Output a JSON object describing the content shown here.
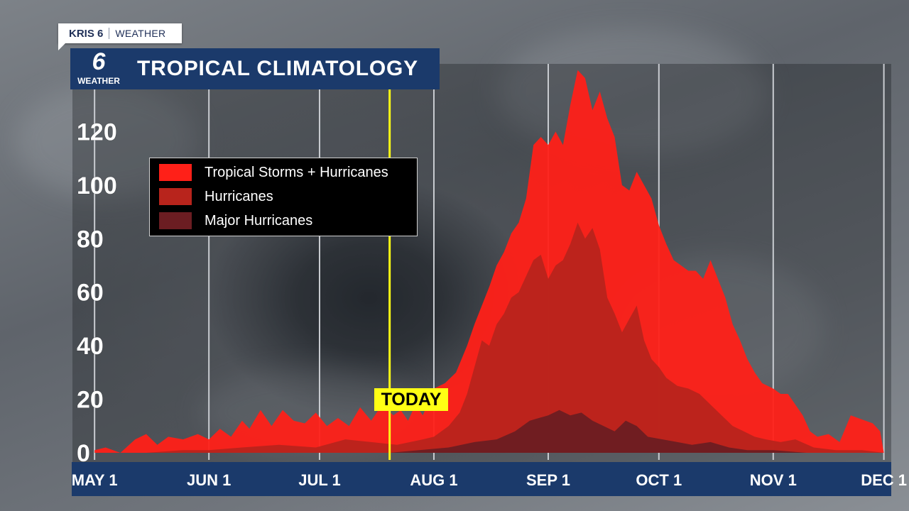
{
  "brand": {
    "station": "KRIS 6",
    "section": "WEATHER"
  },
  "logo": {
    "number": "6",
    "label": "WEATHER"
  },
  "title": "TROPICAL CLIMATOLOGY",
  "today_label": "TODAY",
  "colors": {
    "ts_hurricanes": "#ff2018",
    "hurricanes": "#b8241c",
    "major_hurricanes": "#6b1d22",
    "title_bar": "#1b3a6b",
    "today": "#ffff14"
  },
  "chart_data": {
    "type": "area",
    "title": "TROPICAL CLIMATOLOGY",
    "xlabel": "",
    "ylabel": "",
    "ylim": [
      0,
      140
    ],
    "yticks": [
      0,
      20,
      40,
      60,
      80,
      100,
      120,
      140
    ],
    "x_range": [
      "2024-04-25",
      "2024-12-03"
    ],
    "xticks": [
      {
        "date": "2024-05-01",
        "label": "MAY 1"
      },
      {
        "date": "2024-06-01",
        "label": "JUN 1"
      },
      {
        "date": "2024-07-01",
        "label": "JUL 1"
      },
      {
        "date": "2024-08-01",
        "label": "AUG 1"
      },
      {
        "date": "2024-09-01",
        "label": "SEP 1"
      },
      {
        "date": "2024-10-01",
        "label": "OCT 1"
      },
      {
        "date": "2024-11-01",
        "label": "NOV 1"
      },
      {
        "date": "2024-12-01",
        "label": "DEC 1"
      }
    ],
    "today": "2024-07-20",
    "grid": true,
    "legend_position": "upper-left",
    "series": [
      {
        "name": "Tropical Storms + Hurricanes",
        "color": "#ff2018",
        "points": [
          [
            "2024-05-01",
            1
          ],
          [
            "2024-05-04",
            2
          ],
          [
            "2024-05-08",
            0
          ],
          [
            "2024-05-12",
            5
          ],
          [
            "2024-05-15",
            7
          ],
          [
            "2024-05-18",
            3
          ],
          [
            "2024-05-21",
            6
          ],
          [
            "2024-05-25",
            5
          ],
          [
            "2024-05-29",
            7
          ],
          [
            "2024-06-01",
            5
          ],
          [
            "2024-06-04",
            9
          ],
          [
            "2024-06-07",
            6
          ],
          [
            "2024-06-10",
            12
          ],
          [
            "2024-06-12",
            9
          ],
          [
            "2024-06-15",
            16
          ],
          [
            "2024-06-18",
            10
          ],
          [
            "2024-06-21",
            16
          ],
          [
            "2024-06-24",
            12
          ],
          [
            "2024-06-27",
            11
          ],
          [
            "2024-06-30",
            15
          ],
          [
            "2024-07-03",
            10
          ],
          [
            "2024-07-06",
            13
          ],
          [
            "2024-07-09",
            10
          ],
          [
            "2024-07-12",
            17
          ],
          [
            "2024-07-15",
            12
          ],
          [
            "2024-07-18",
            18
          ],
          [
            "2024-07-21",
            14
          ],
          [
            "2024-07-23",
            16
          ],
          [
            "2024-07-25",
            12
          ],
          [
            "2024-07-27",
            18
          ],
          [
            "2024-07-29",
            14
          ],
          [
            "2024-08-01",
            24
          ],
          [
            "2024-08-04",
            26
          ],
          [
            "2024-08-07",
            30
          ],
          [
            "2024-08-10",
            40
          ],
          [
            "2024-08-12",
            48
          ],
          [
            "2024-08-14",
            55
          ],
          [
            "2024-08-16",
            62
          ],
          [
            "2024-08-18",
            70
          ],
          [
            "2024-08-20",
            75
          ],
          [
            "2024-08-22",
            82
          ],
          [
            "2024-08-24",
            86
          ],
          [
            "2024-08-26",
            95
          ],
          [
            "2024-08-28",
            115
          ],
          [
            "2024-08-30",
            118
          ],
          [
            "2024-09-01",
            115
          ],
          [
            "2024-09-03",
            120
          ],
          [
            "2024-09-05",
            115
          ],
          [
            "2024-09-07",
            130
          ],
          [
            "2024-09-09",
            143
          ],
          [
            "2024-09-11",
            140
          ],
          [
            "2024-09-13",
            128
          ],
          [
            "2024-09-15",
            135
          ],
          [
            "2024-09-17",
            125
          ],
          [
            "2024-09-19",
            118
          ],
          [
            "2024-09-21",
            100
          ],
          [
            "2024-09-23",
            98
          ],
          [
            "2024-09-25",
            105
          ],
          [
            "2024-09-27",
            100
          ],
          [
            "2024-09-29",
            95
          ],
          [
            "2024-10-01",
            85
          ],
          [
            "2024-10-03",
            78
          ],
          [
            "2024-10-05",
            72
          ],
          [
            "2024-10-07",
            70
          ],
          [
            "2024-10-09",
            68
          ],
          [
            "2024-10-11",
            68
          ],
          [
            "2024-10-13",
            65
          ],
          [
            "2024-10-15",
            72
          ],
          [
            "2024-10-17",
            65
          ],
          [
            "2024-10-19",
            58
          ],
          [
            "2024-10-21",
            48
          ],
          [
            "2024-10-23",
            42
          ],
          [
            "2024-10-25",
            35
          ],
          [
            "2024-10-27",
            30
          ],
          [
            "2024-10-29",
            26
          ],
          [
            "2024-11-01",
            24
          ],
          [
            "2024-11-03",
            22
          ],
          [
            "2024-11-05",
            22
          ],
          [
            "2024-11-07",
            18
          ],
          [
            "2024-11-09",
            14
          ],
          [
            "2024-11-11",
            8
          ],
          [
            "2024-11-13",
            6
          ],
          [
            "2024-11-16",
            7
          ],
          [
            "2024-11-19",
            4
          ],
          [
            "2024-11-22",
            14
          ],
          [
            "2024-11-24",
            13
          ],
          [
            "2024-11-26",
            12
          ],
          [
            "2024-11-28",
            11
          ],
          [
            "2024-11-30",
            8
          ],
          [
            "2024-12-01",
            0
          ]
        ]
      },
      {
        "name": "Hurricanes",
        "color": "#b8241c",
        "points": [
          [
            "2024-05-15",
            0
          ],
          [
            "2024-05-25",
            1
          ],
          [
            "2024-06-01",
            1
          ],
          [
            "2024-06-10",
            2
          ],
          [
            "2024-06-20",
            3
          ],
          [
            "2024-06-30",
            2
          ],
          [
            "2024-07-08",
            5
          ],
          [
            "2024-07-15",
            4
          ],
          [
            "2024-07-22",
            3
          ],
          [
            "2024-07-29",
            5
          ],
          [
            "2024-08-01",
            6
          ],
          [
            "2024-08-05",
            10
          ],
          [
            "2024-08-08",
            15
          ],
          [
            "2024-08-10",
            22
          ],
          [
            "2024-08-12",
            32
          ],
          [
            "2024-08-14",
            42
          ],
          [
            "2024-08-16",
            40
          ],
          [
            "2024-08-18",
            48
          ],
          [
            "2024-08-20",
            52
          ],
          [
            "2024-08-22",
            58
          ],
          [
            "2024-08-24",
            60
          ],
          [
            "2024-08-26",
            66
          ],
          [
            "2024-08-28",
            72
          ],
          [
            "2024-08-30",
            74
          ],
          [
            "2024-09-01",
            65
          ],
          [
            "2024-09-03",
            70
          ],
          [
            "2024-09-05",
            72
          ],
          [
            "2024-09-07",
            78
          ],
          [
            "2024-09-09",
            86
          ],
          [
            "2024-09-11",
            80
          ],
          [
            "2024-09-13",
            84
          ],
          [
            "2024-09-15",
            76
          ],
          [
            "2024-09-17",
            58
          ],
          [
            "2024-09-19",
            52
          ],
          [
            "2024-09-21",
            45
          ],
          [
            "2024-09-23",
            50
          ],
          [
            "2024-09-25",
            55
          ],
          [
            "2024-09-27",
            42
          ],
          [
            "2024-09-29",
            35
          ],
          [
            "2024-10-01",
            32
          ],
          [
            "2024-10-03",
            28
          ],
          [
            "2024-10-06",
            25
          ],
          [
            "2024-10-09",
            24
          ],
          [
            "2024-10-12",
            22
          ],
          [
            "2024-10-15",
            18
          ],
          [
            "2024-10-18",
            14
          ],
          [
            "2024-10-21",
            10
          ],
          [
            "2024-10-24",
            8
          ],
          [
            "2024-10-27",
            6
          ],
          [
            "2024-10-30",
            5
          ],
          [
            "2024-11-03",
            4
          ],
          [
            "2024-11-07",
            5
          ],
          [
            "2024-11-12",
            2
          ],
          [
            "2024-11-18",
            1
          ],
          [
            "2024-11-25",
            1
          ],
          [
            "2024-12-01",
            0
          ]
        ]
      },
      {
        "name": "Major Hurricanes",
        "color": "#6b1d22",
        "points": [
          [
            "2024-07-20",
            0
          ],
          [
            "2024-07-28",
            1
          ],
          [
            "2024-08-05",
            2
          ],
          [
            "2024-08-12",
            4
          ],
          [
            "2024-08-18",
            5
          ],
          [
            "2024-08-23",
            8
          ],
          [
            "2024-08-27",
            12
          ],
          [
            "2024-09-01",
            14
          ],
          [
            "2024-09-04",
            16
          ],
          [
            "2024-09-07",
            14
          ],
          [
            "2024-09-10",
            15
          ],
          [
            "2024-09-13",
            12
          ],
          [
            "2024-09-16",
            10
          ],
          [
            "2024-09-19",
            8
          ],
          [
            "2024-09-22",
            12
          ],
          [
            "2024-09-25",
            10
          ],
          [
            "2024-09-28",
            6
          ],
          [
            "2024-10-02",
            5
          ],
          [
            "2024-10-06",
            4
          ],
          [
            "2024-10-10",
            3
          ],
          [
            "2024-10-15",
            4
          ],
          [
            "2024-10-20",
            2
          ],
          [
            "2024-10-25",
            1
          ],
          [
            "2024-11-01",
            1
          ],
          [
            "2024-11-10",
            0
          ]
        ]
      }
    ]
  }
}
